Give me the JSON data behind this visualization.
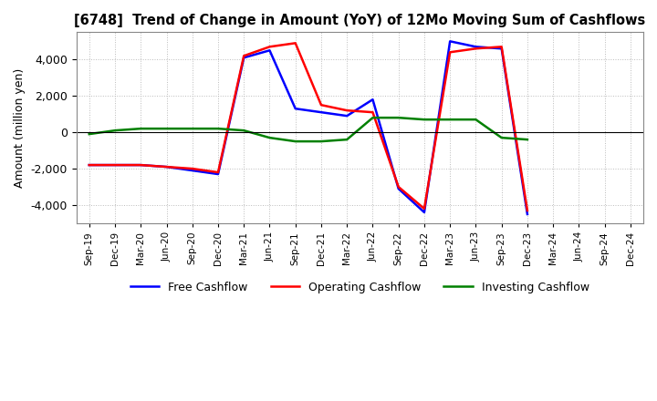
{
  "title": "[6748]  Trend of Change in Amount (YoY) of 12Mo Moving Sum of Cashflows",
  "ylabel": "Amount (million yen)",
  "x_labels": [
    "Sep-19",
    "Dec-19",
    "Mar-20",
    "Jun-20",
    "Sep-20",
    "Dec-20",
    "Mar-21",
    "Jun-21",
    "Sep-21",
    "Dec-21",
    "Mar-22",
    "Jun-22",
    "Sep-22",
    "Dec-22",
    "Mar-23",
    "Jun-23",
    "Sep-23",
    "Dec-23",
    "Mar-24",
    "Jun-24",
    "Sep-24",
    "Dec-24"
  ],
  "operating": [
    -1800,
    -1800,
    -1800,
    -1900,
    -2000,
    -2200,
    4200,
    4700,
    4900,
    1500,
    1200,
    1100,
    -3000,
    -4200,
    4400,
    4600,
    4700,
    -4300,
    null,
    null,
    null,
    null
  ],
  "investing": [
    -100,
    100,
    200,
    200,
    200,
    200,
    100,
    -300,
    -500,
    -500,
    -400,
    800,
    800,
    700,
    700,
    700,
    -300,
    -400,
    null,
    null,
    null,
    null
  ],
  "free": [
    -1800,
    -1800,
    -1800,
    -1900,
    -2100,
    -2300,
    4100,
    4500,
    1300,
    1100,
    900,
    1800,
    -3100,
    -4400,
    5000,
    4700,
    4600,
    -4500,
    null,
    null,
    null,
    null
  ],
  "operating_color": "#ff0000",
  "investing_color": "#008000",
  "free_color": "#0000ff",
  "ylim": [
    -5000,
    5500
  ],
  "yticks": [
    -4000,
    -2000,
    0,
    2000,
    4000
  ],
  "background": "#ffffff",
  "grid_color": "#bbbbbb"
}
